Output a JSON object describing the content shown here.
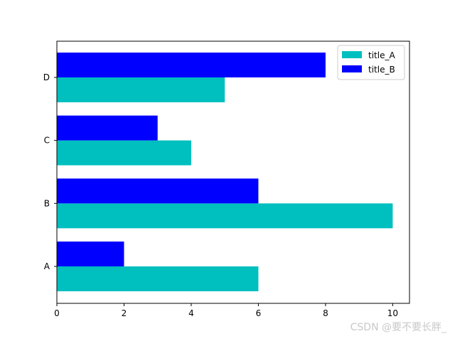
{
  "chart_data": {
    "type": "bar",
    "orientation": "horizontal",
    "categories": [
      "A",
      "B",
      "C",
      "D"
    ],
    "series": [
      {
        "name": "title_A",
        "values": [
          6,
          10,
          4,
          5
        ],
        "color": "#00bfbf"
      },
      {
        "name": "title_B",
        "values": [
          2,
          6,
          3,
          8
        ],
        "color": "#0000ff"
      }
    ],
    "xlim": [
      0,
      10.5
    ],
    "x_ticks": [
      0,
      2,
      4,
      6,
      8,
      10
    ],
    "grid": false,
    "legend_position": "top-right"
  },
  "watermark": "CSDN @要不要长胖_"
}
